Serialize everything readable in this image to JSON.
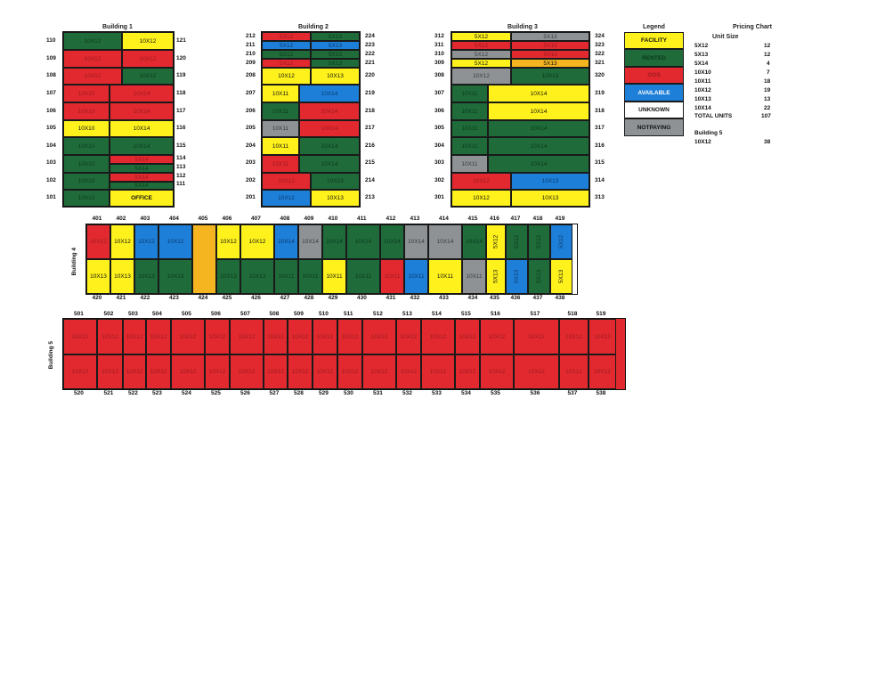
{
  "colors": {
    "facility": "#fff21c",
    "rented": "#1f6b3a",
    "oos": "#e22930",
    "available": "#1e7fd8",
    "unknown": "#ffffff",
    "notpaying": "#8e9294",
    "orange": "#f4b520"
  },
  "buildings": {
    "b1": {
      "title": "Building 1"
    },
    "b2": {
      "title": "Building 2"
    },
    "b3": {
      "title": "Building 3"
    },
    "b4": {
      "title": "Building 4"
    },
    "b5": {
      "title": "Building 5"
    }
  },
  "legend": {
    "title": "Legend",
    "items": [
      "FACILITY",
      "RENTED",
      "OOS",
      "AVAILABLE",
      "UNKNOWN",
      "NOTPAYING"
    ]
  },
  "pricing": {
    "title": "Pricing Chart",
    "subtitle": "Unit Size",
    "rows": [
      {
        "size": "5X12",
        "count": "12"
      },
      {
        "size": "5X13",
        "count": "12"
      },
      {
        "size": "5X14",
        "count": "4"
      },
      {
        "size": "10X10",
        "count": "7"
      },
      {
        "size": "10X11",
        "count": "18"
      },
      {
        "size": "10X12",
        "count": "19"
      },
      {
        "size": "10X13",
        "count": "13"
      },
      {
        "size": "10X14",
        "count": "22"
      }
    ],
    "total_label": "TOTAL UNITS",
    "total_value": "107",
    "b5_label": "Building 5",
    "b5_size": "10X12",
    "b5_count": "38"
  },
  "b1": {
    "left": [
      "110",
      "109",
      "108",
      "107",
      "106",
      "105",
      "104",
      "103",
      "102",
      "101"
    ],
    "right": [
      "121",
      "120",
      "119",
      "118",
      "117",
      "116",
      "115",
      "114",
      "113",
      "112",
      "111"
    ],
    "c": {
      "r110a": "10X12",
      "r121": "10X12",
      "r109a": "10X12",
      "r120": "10X12",
      "r108a": "10X12",
      "r119": "10X12",
      "r107a": "10X10",
      "r118": "10X14",
      "r106a": "10X10",
      "r117": "10X14",
      "r105a": "10X10",
      "r116": "10X14",
      "r104a": "10X10",
      "r115": "10X14",
      "r103a": "10X10",
      "r114": "5X14",
      "r113": "5X14",
      "r102a": "10X10",
      "r112": "5X14",
      "r111": "5X14",
      "r101a": "10X10",
      "office": "OFFICE"
    }
  },
  "b2": {
    "left": [
      "212",
      "211",
      "210",
      "209",
      "208",
      "207",
      "206",
      "205",
      "204",
      "203",
      "202",
      "201"
    ],
    "right": [
      "224",
      "223",
      "222",
      "221",
      "220",
      "219",
      "218",
      "217",
      "216",
      "215",
      "214",
      "213"
    ],
    "c": {
      "u212": "5X12",
      "u224": "5X13",
      "u211": "5X12",
      "u223": "5X13",
      "u210": "5X12",
      "u222": "5X13",
      "u209": "5X12",
      "u221": "5X13",
      "u208": "10X12",
      "u220": "10X13",
      "u207": "10X11",
      "u219": "10X14",
      "u206": "10X11",
      "u218": "10X14",
      "u205": "10X11",
      "u217": "10X14",
      "u204": "10X11",
      "u216": "10X14",
      "u203": "10X11",
      "u215": "10X14",
      "u202": "10X12",
      "u214": "10X13",
      "u201": "10X12",
      "u213": "10X13"
    }
  },
  "b3": {
    "left": [
      "312",
      "311",
      "310",
      "309",
      "308",
      "307",
      "306",
      "305",
      "304",
      "303",
      "302",
      "301"
    ],
    "right": [
      "324",
      "323",
      "322",
      "321",
      "320",
      "319",
      "318",
      "317",
      "316",
      "315",
      "314",
      "313"
    ],
    "c": {
      "u312": "5X12",
      "u324": "5X13",
      "u311": "5X12",
      "u323": "5X13",
      "u310": "5X12",
      "u322": "5X13",
      "u309": "5X12",
      "u321": "5X13",
      "u308": "10X12",
      "u320": "10X13",
      "u307": "10X11",
      "u319": "10X14",
      "u306": "10X11",
      "u318": "10X14",
      "u305": "10X11",
      "u317": "10X14",
      "u304": "10X11",
      "u316": "10X14",
      "u303": "10X11",
      "u315": "10X14",
      "u302": "10X12",
      "u314": "10X13",
      "u301": "10X12",
      "u313": "10X13"
    }
  },
  "b4": {
    "top": [
      "401",
      "402",
      "403",
      "404",
      "405",
      "406",
      "407",
      "408",
      "409",
      "410",
      "411",
      "412",
      "413",
      "414",
      "415",
      "416",
      "417",
      "418",
      "419"
    ],
    "bottom": [
      "420",
      "421",
      "422",
      "423",
      "424",
      "425",
      "426",
      "427",
      "428",
      "429",
      "430",
      "431",
      "432",
      "433",
      "434",
      "435",
      "436",
      "437",
      "438"
    ],
    "topcells": [
      "10X12",
      "10X12",
      "10X12",
      "10X12",
      "",
      "10X12",
      "10X12",
      "10X14",
      "10X14",
      "10X14",
      "10X14",
      "10X14",
      "10X14",
      "10X14",
      "10X14",
      "5X12",
      "5X12",
      "5X12",
      "5X12"
    ],
    "botcells": [
      "10X13",
      "10X13",
      "10X13",
      "10X13",
      "",
      "10X13",
      "10X13",
      "10X11",
      "10X11",
      "10X11",
      "10X11",
      "10X11",
      "10X11",
      "10X11",
      "10X11",
      "5X13",
      "5X13",
      "5X13",
      "5X13"
    ]
  },
  "b5": {
    "top": [
      "501",
      "502",
      "503",
      "504",
      "505",
      "506",
      "507",
      "508",
      "509",
      "510",
      "511",
      "512",
      "513",
      "514",
      "515",
      "516",
      "517",
      "518",
      "519"
    ],
    "bottom": [
      "520",
      "521",
      "522",
      "523",
      "524",
      "525",
      "526",
      "527",
      "528",
      "529",
      "530",
      "531",
      "532",
      "533",
      "534",
      "535",
      "536",
      "537",
      "538"
    ],
    "cell": "10X12"
  }
}
